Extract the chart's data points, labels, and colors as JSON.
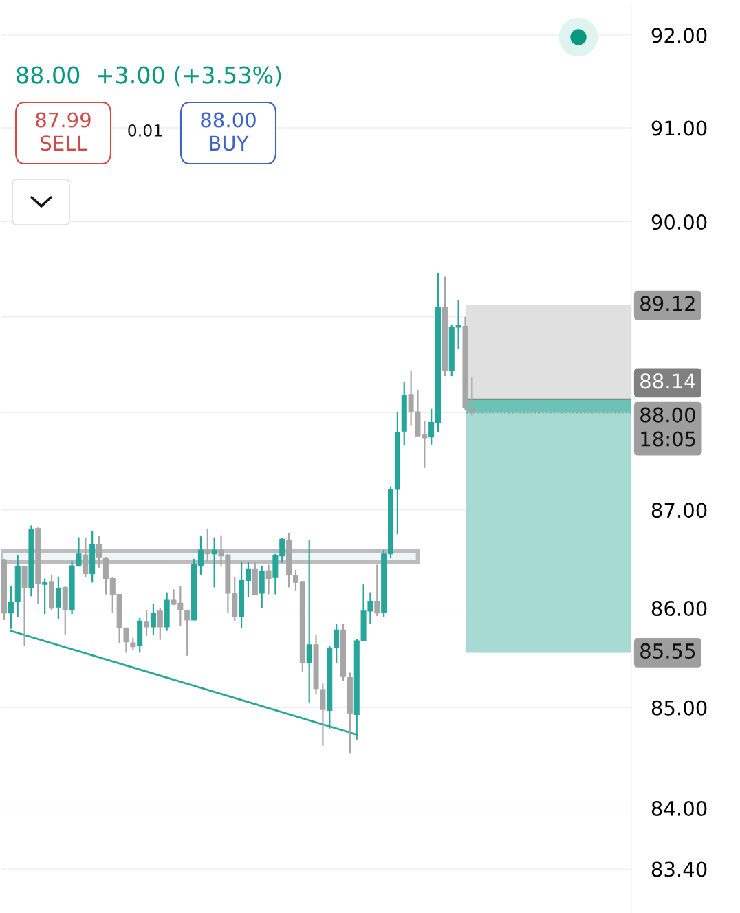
{
  "chart_data": {
    "type": "candlestick",
    "subtitle": "88.00  +3.00 (+3.53%)",
    "annotations": [
      "87.99\nSELL",
      "0.01",
      "88.00\nBUY"
    ],
    "categories": [
      null,
      null,
      null,
      null,
      null,
      null,
      null,
      null,
      null,
      null,
      null,
      null,
      null,
      null,
      null,
      null,
      null,
      null,
      null,
      null,
      null,
      null,
      null,
      null,
      null,
      null,
      null,
      null,
      null,
      null,
      null,
      null,
      null,
      null,
      null,
      null,
      null,
      null,
      null,
      null,
      null,
      null,
      null,
      null,
      null,
      null,
      null,
      null,
      null,
      null,
      null,
      null,
      null,
      null,
      null,
      null,
      null,
      null,
      null,
      null,
      null,
      null,
      null,
      null,
      null,
      null,
      null,
      null,
      null,
      null,
      null,
      null,
      null,
      null,
      null,
      null,
      null,
      null,
      null,
      null,
      null,
      null,
      null,
      null,
      null,
      null,
      null,
      null,
      null,
      null,
      null,
      null,
      null
    ],
    "ohlc": [
      [
        86.49,
        86.5,
        85.88,
        85.95
      ],
      [
        85.95,
        86.22,
        85.79,
        86.06
      ],
      [
        86.07,
        86.54,
        85.91,
        86.42
      ],
      [
        86.42,
        86.42,
        85.62,
        86.21
      ],
      [
        86.21,
        86.84,
        86.12,
        86.8
      ],
      [
        86.81,
        86.82,
        86.04,
        86.25
      ],
      [
        86.24,
        86.3,
        85.94,
        86.26
      ],
      [
        86.27,
        86.34,
        85.98,
        86.0
      ],
      [
        86.01,
        86.32,
        85.89,
        86.2
      ],
      [
        86.21,
        86.22,
        85.73,
        85.98
      ],
      [
        85.98,
        86.48,
        85.94,
        86.43
      ],
      [
        86.43,
        86.72,
        86.42,
        86.55
      ],
      [
        86.54,
        86.72,
        86.31,
        86.35
      ],
      [
        86.35,
        86.78,
        86.26,
        86.65
      ],
      [
        86.65,
        86.73,
        86.41,
        86.52
      ],
      [
        86.51,
        86.52,
        86.14,
        86.3
      ],
      [
        86.3,
        86.31,
        85.95,
        86.14
      ],
      [
        86.14,
        86.14,
        85.65,
        85.8
      ],
      [
        85.8,
        85.8,
        85.55,
        85.66
      ],
      [
        85.65,
        85.7,
        85.58,
        85.61
      ],
      [
        85.62,
        85.9,
        85.55,
        85.87
      ],
      [
        85.86,
        85.98,
        85.72,
        85.81
      ],
      [
        85.81,
        86.04,
        85.73,
        85.95
      ],
      [
        85.97,
        86.0,
        85.68,
        85.81
      ],
      [
        85.81,
        86.16,
        85.77,
        86.08
      ],
      [
        86.08,
        86.19,
        86.03,
        86.04
      ],
      [
        86.05,
        86.22,
        85.82,
        85.98
      ],
      [
        85.98,
        85.98,
        85.52,
        85.88
      ],
      [
        85.88,
        86.5,
        85.88,
        86.44
      ],
      [
        86.43,
        86.73,
        86.34,
        86.59
      ],
      [
        86.59,
        86.81,
        86.47,
        86.55
      ],
      [
        86.55,
        86.72,
        86.21,
        86.59
      ],
      [
        86.59,
        86.74,
        86.42,
        86.53
      ],
      [
        86.54,
        86.55,
        85.95,
        86.15
      ],
      [
        86.15,
        86.31,
        85.87,
        85.91
      ],
      [
        85.91,
        86.47,
        85.8,
        86.28
      ],
      [
        86.28,
        86.47,
        86.11,
        86.4
      ],
      [
        86.4,
        86.47,
        86.14,
        86.14
      ],
      [
        86.15,
        86.43,
        86.0,
        86.37
      ],
      [
        86.38,
        86.44,
        86.14,
        86.3
      ],
      [
        86.31,
        86.55,
        86.14,
        86.53
      ],
      [
        86.53,
        86.71,
        86.46,
        86.7
      ],
      [
        86.69,
        86.76,
        86.21,
        86.34
      ],
      [
        86.33,
        86.39,
        86.18,
        86.26
      ],
      [
        86.27,
        86.27,
        85.36,
        85.45
      ],
      [
        85.45,
        86.69,
        85.05,
        85.63
      ],
      [
        85.63,
        85.73,
        85.13,
        85.19
      ],
      [
        85.18,
        85.24,
        84.62,
        84.98
      ],
      [
        84.97,
        85.62,
        84.79,
        85.6
      ],
      [
        85.6,
        85.84,
        85.45,
        85.78
      ],
      [
        85.78,
        85.84,
        85.27,
        85.31
      ],
      [
        85.3,
        85.35,
        84.54,
        84.94
      ],
      [
        84.93,
        85.69,
        84.68,
        85.67
      ],
      [
        85.67,
        86.24,
        85.67,
        85.97
      ],
      [
        85.97,
        86.16,
        85.84,
        86.07
      ],
      [
        86.07,
        86.44,
        85.92,
        85.95
      ],
      [
        85.96,
        86.59,
        85.91,
        86.55
      ],
      [
        86.55,
        87.24,
        86.51,
        87.21
      ],
      [
        87.21,
        88.01,
        86.75,
        87.8
      ],
      [
        87.81,
        88.32,
        87.66,
        88.18
      ],
      [
        88.19,
        88.44,
        87.87,
        88.01
      ],
      [
        88.01,
        88.24,
        87.76,
        87.76
      ],
      [
        87.77,
        87.91,
        87.43,
        87.74
      ],
      [
        87.75,
        88.04,
        87.67,
        87.9
      ],
      [
        87.9,
        89.46,
        87.8,
        89.1
      ],
      [
        89.1,
        89.42,
        88.38,
        88.44
      ],
      [
        88.44,
        88.92,
        88.38,
        88.89
      ],
      [
        88.89,
        89.17,
        88.66,
        88.91
      ],
      [
        88.9,
        89.0,
        88.03,
        88.05
      ],
      [
        88.04,
        88.37,
        87.97,
        88.0
      ],
      null,
      null,
      null,
      null,
      null,
      null,
      null,
      null,
      null,
      null,
      null,
      null,
      null,
      null,
      null,
      null,
      null,
      null,
      null,
      null,
      null,
      null,
      null
    ],
    "colors": [
      "#a6a6a6",
      "#26a69a",
      "#26a69a",
      "#a6a6a6",
      "#26a69a",
      "#a6a6a6",
      "#26a69a",
      "#a6a6a6",
      "#26a69a",
      "#a6a6a6",
      "#26a69a",
      "#26a69a",
      "#a6a6a6",
      "#26a69a",
      "#a6a6a6",
      "#a6a6a6",
      "#a6a6a6",
      "#a6a6a6",
      "#a6a6a6",
      "#a6a6a6",
      "#26a69a",
      "#a6a6a6",
      "#26a69a",
      "#a6a6a6",
      "#26a69a",
      "#a6a6a6",
      "#a6a6a6",
      "#a6a6a6",
      "#26a69a",
      "#26a69a",
      "#a6a6a6",
      "#26a69a",
      "#a6a6a6",
      "#a6a6a6",
      "#a6a6a6",
      "#26a69a",
      "#26a69a",
      "#a6a6a6",
      "#26a69a",
      "#a6a6a6",
      "#26a69a",
      "#26a69a",
      "#a6a6a6",
      "#a6a6a6",
      "#a6a6a6",
      "#26a69a",
      "#a6a6a6",
      "#a6a6a6",
      "#26a69a",
      "#26a69a",
      "#a6a6a6",
      "#a6a6a6",
      "#26a69a",
      "#26a69a",
      "#26a69a",
      "#a6a6a6",
      "#26a69a",
      "#26a69a",
      "#26a69a",
      "#26a69a",
      "#a6a6a6",
      "#a6a6a6",
      "#a6a6a6",
      "#26a69a",
      "#26a69a",
      "#a6a6a6",
      "#26a69a",
      "#26a69a",
      "#a6a6a6",
      "#a6a6a6",
      null,
      null,
      null,
      null,
      null,
      null,
      null,
      null,
      null,
      null,
      null,
      null,
      null,
      null,
      null,
      null,
      null,
      null,
      null,
      null,
      null,
      null,
      null
    ],
    "series": [
      {
        "type": "line",
        "values": [
          null,
          85.77,
          null,
          null,
          null,
          null,
          null,
          null,
          null,
          null,
          null,
          null,
          null,
          null,
          null,
          null,
          null,
          null,
          null,
          null,
          null,
          null,
          null,
          null,
          null,
          null,
          null,
          null,
          null,
          null,
          null,
          null,
          null,
          null,
          null,
          null,
          null,
          null,
          null,
          null,
          null,
          null,
          null,
          null,
          null,
          null,
          null,
          null,
          null,
          null,
          null,
          null,
          84.73,
          null,
          null,
          null,
          null,
          null,
          null,
          null,
          null,
          null,
          null,
          null,
          null,
          null,
          null,
          null,
          null,
          null,
          null,
          null,
          null,
          null,
          null,
          null,
          null,
          null,
          null,
          null,
          null,
          null,
          null,
          null,
          null,
          null,
          null,
          null,
          null,
          null,
          null,
          null,
          null
        ],
        "color": "#26a69a"
      }
    ],
    "bands": [
      {
        "axis": "y",
        "from": 86.47,
        "to": 86.58,
        "color": "#bdbdbd"
      },
      {
        "axis": "y",
        "from": 88.14,
        "to": 89.12,
        "color": "#e0e0e0",
        "label": "89.12"
      },
      {
        "axis": "y",
        "from": 85.55,
        "to": 88.14,
        "color": "#a6dad3",
        "label": "85.55"
      },
      {
        "axis": "y",
        "from": 88.0,
        "to": 88.14,
        "color": "#6cc2b5"
      }
    ],
    "ref_lines": [
      {
        "axis": "y",
        "value": 88.14,
        "label": "88.14",
        "color": "#808080",
        "line_style": "solid"
      },
      {
        "axis": "y",
        "value": 88.0,
        "label": "88.00\n18:05",
        "color": "#9e9e9e",
        "line_style": "dotted"
      }
    ],
    "log": true,
    "ylim": [
      82.97,
      92.32
    ],
    "yticks": [
      {
        "value": 92,
        "label": "92.00"
      },
      {
        "value": 91,
        "label": "91.00"
      },
      {
        "value": 90,
        "label": "90.00"
      },
      {
        "value": 89,
        "label": null
      },
      {
        "value": 88,
        "label": null
      },
      {
        "value": 87,
        "label": "87.00"
      },
      {
        "value": 86,
        "label": "86.00"
      },
      {
        "value": 85,
        "label": "85.00"
      },
      {
        "value": 84,
        "label": "84.00"
      },
      {
        "value": 83.4,
        "label": "83.40"
      }
    ],
    "grid": "y",
    "tick_labels": "y"
  }
}
